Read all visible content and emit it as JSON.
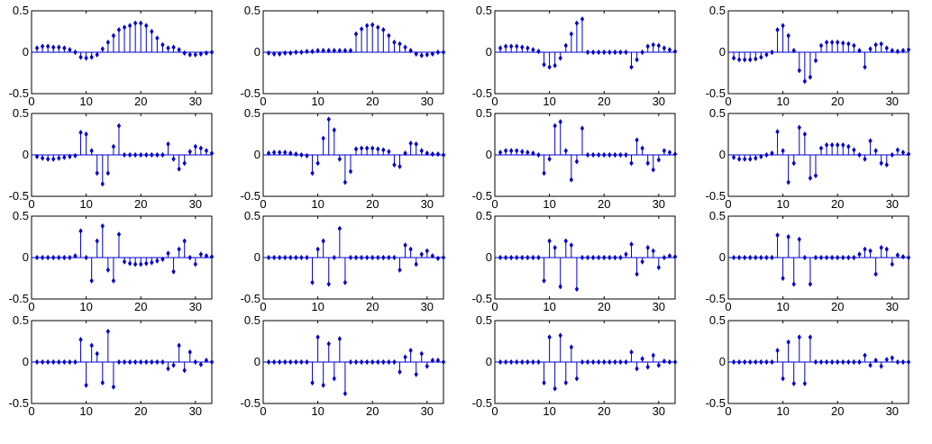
{
  "figure": {
    "background": "#ffffff",
    "marker_color": "#0000cc",
    "axes_color": "#000000",
    "x_tick_labels": [
      "0",
      "10",
      "20",
      "30"
    ],
    "y_tick_labels": [
      "0.5",
      "0",
      "-0.5"
    ]
  },
  "chart_data": [
    {
      "type": "stem",
      "row": 1,
      "col": 1,
      "xlim": [
        0,
        33
      ],
      "ylim": [
        -0.5,
        0.5
      ],
      "x": [
        1,
        2,
        3,
        4,
        5,
        6,
        7,
        8,
        9,
        10,
        11,
        12,
        13,
        14,
        15,
        16,
        17,
        18,
        19,
        20,
        21,
        22,
        23,
        24,
        25,
        26,
        27,
        28,
        29,
        30,
        31,
        32,
        33
      ],
      "y": [
        0.05,
        0.07,
        0.07,
        0.06,
        0.06,
        0.05,
        0.03,
        0.0,
        -0.06,
        -0.07,
        -0.06,
        -0.03,
        0.04,
        0.12,
        0.2,
        0.27,
        0.3,
        0.32,
        0.35,
        0.35,
        0.32,
        0.25,
        0.17,
        0.09,
        0.05,
        0.06,
        0.03,
        -0.01,
        -0.03,
        -0.03,
        -0.02,
        -0.01,
        0.0
      ]
    },
    {
      "type": "stem",
      "row": 1,
      "col": 2,
      "xlim": [
        0,
        33
      ],
      "ylim": [
        -0.5,
        0.5
      ],
      "x": [
        1,
        2,
        3,
        4,
        5,
        6,
        7,
        8,
        9,
        10,
        11,
        12,
        13,
        14,
        15,
        16,
        17,
        18,
        19,
        20,
        21,
        22,
        23,
        24,
        25,
        26,
        27,
        28,
        29,
        30,
        31,
        32,
        33
      ],
      "y": [
        -0.01,
        -0.02,
        -0.02,
        -0.01,
        -0.01,
        0.0,
        0.0,
        0.01,
        0.01,
        0.02,
        0.02,
        0.02,
        0.02,
        0.02,
        0.02,
        0.02,
        0.22,
        0.28,
        0.32,
        0.33,
        0.3,
        0.27,
        0.2,
        0.12,
        0.1,
        0.06,
        0.02,
        -0.02,
        -0.04,
        -0.03,
        -0.02,
        0.0,
        0.0
      ]
    },
    {
      "type": "stem",
      "row": 1,
      "col": 3,
      "xlim": [
        0,
        33
      ],
      "ylim": [
        -0.5,
        0.5
      ],
      "x": [
        1,
        2,
        3,
        4,
        5,
        6,
        7,
        8,
        9,
        10,
        11,
        12,
        13,
        14,
        15,
        16,
        17,
        18,
        19,
        20,
        21,
        22,
        23,
        24,
        25,
        26,
        27,
        28,
        29,
        30,
        31,
        32,
        33
      ],
      "y": [
        0.05,
        0.07,
        0.07,
        0.07,
        0.06,
        0.05,
        0.03,
        0.01,
        -0.15,
        -0.18,
        -0.16,
        -0.07,
        0.08,
        0.22,
        0.35,
        0.4,
        0.0,
        0.0,
        0.0,
        0.0,
        0.0,
        0.0,
        0.0,
        0.0,
        -0.18,
        -0.09,
        0.0,
        0.07,
        0.09,
        0.08,
        0.05,
        0.03,
        0.01
      ]
    },
    {
      "type": "stem",
      "row": 1,
      "col": 4,
      "xlim": [
        0,
        33
      ],
      "ylim": [
        -0.5,
        0.5
      ],
      "x": [
        1,
        2,
        3,
        4,
        5,
        6,
        7,
        8,
        9,
        10,
        11,
        12,
        13,
        14,
        15,
        16,
        17,
        18,
        19,
        20,
        21,
        22,
        23,
        24,
        25,
        26,
        27,
        28,
        29,
        30,
        31,
        32,
        33
      ],
      "y": [
        -0.07,
        -0.09,
        -0.09,
        -0.09,
        -0.08,
        -0.06,
        -0.03,
        0.0,
        0.27,
        0.32,
        0.2,
        0.02,
        -0.22,
        -0.35,
        -0.3,
        -0.1,
        0.08,
        0.12,
        0.12,
        0.12,
        0.11,
        0.1,
        0.08,
        0.02,
        -0.18,
        0.04,
        0.09,
        0.1,
        0.05,
        0.02,
        0.01,
        0.02,
        0.03
      ]
    },
    {
      "type": "stem",
      "row": 2,
      "col": 1,
      "xlim": [
        0,
        33
      ],
      "ylim": [
        -0.5,
        0.5
      ],
      "x": [
        1,
        2,
        3,
        4,
        5,
        6,
        7,
        8,
        9,
        10,
        11,
        12,
        13,
        14,
        15,
        16,
        17,
        18,
        19,
        20,
        21,
        22,
        23,
        24,
        25,
        26,
        27,
        28,
        29,
        30,
        31,
        32,
        33
      ],
      "y": [
        -0.02,
        -0.04,
        -0.05,
        -0.05,
        -0.04,
        -0.03,
        -0.02,
        -0.01,
        0.27,
        0.25,
        0.05,
        -0.22,
        -0.35,
        -0.22,
        0.1,
        0.35,
        0.0,
        0.0,
        0.0,
        0.0,
        0.0,
        0.0,
        0.0,
        0.0,
        0.13,
        -0.05,
        -0.17,
        -0.1,
        0.04,
        0.1,
        0.08,
        0.05,
        0.02
      ]
    },
    {
      "type": "stem",
      "row": 2,
      "col": 2,
      "xlim": [
        0,
        33
      ],
      "ylim": [
        -0.5,
        0.5
      ],
      "x": [
        1,
        2,
        3,
        4,
        5,
        6,
        7,
        8,
        9,
        10,
        11,
        12,
        13,
        14,
        15,
        16,
        17,
        18,
        19,
        20,
        21,
        22,
        23,
        24,
        25,
        26,
        27,
        28,
        29,
        30,
        31,
        32,
        33
      ],
      "y": [
        0.02,
        0.03,
        0.03,
        0.03,
        0.02,
        0.01,
        0.0,
        -0.01,
        -0.22,
        -0.1,
        0.2,
        0.43,
        0.3,
        -0.05,
        -0.33,
        -0.2,
        0.07,
        0.08,
        0.08,
        0.08,
        0.07,
        0.06,
        0.04,
        -0.12,
        -0.14,
        0.02,
        0.14,
        0.13,
        0.05,
        0.02,
        0.01,
        0.01,
        0.0
      ]
    },
    {
      "type": "stem",
      "row": 2,
      "col": 3,
      "xlim": [
        0,
        33
      ],
      "ylim": [
        -0.5,
        0.5
      ],
      "x": [
        1,
        2,
        3,
        4,
        5,
        6,
        7,
        8,
        9,
        10,
        11,
        12,
        13,
        14,
        15,
        16,
        17,
        18,
        19,
        20,
        21,
        22,
        23,
        24,
        25,
        26,
        27,
        28,
        29,
        30,
        31,
        32,
        33
      ],
      "y": [
        0.03,
        0.05,
        0.05,
        0.05,
        0.04,
        0.03,
        0.02,
        0.0,
        -0.22,
        -0.05,
        0.35,
        0.4,
        0.05,
        -0.3,
        -0.08,
        0.32,
        0.0,
        0.0,
        0.0,
        0.0,
        0.0,
        0.0,
        0.0,
        0.0,
        -0.1,
        0.18,
        0.08,
        -0.1,
        -0.18,
        -0.06,
        0.05,
        0.03,
        0.01
      ]
    },
    {
      "type": "stem",
      "row": 2,
      "col": 4,
      "xlim": [
        0,
        33
      ],
      "ylim": [
        -0.5,
        0.5
      ],
      "x": [
        1,
        2,
        3,
        4,
        5,
        6,
        7,
        8,
        9,
        10,
        11,
        12,
        13,
        14,
        15,
        16,
        17,
        18,
        19,
        20,
        21,
        22,
        23,
        24,
        25,
        26,
        27,
        28,
        29,
        30,
        31,
        32,
        33
      ],
      "y": [
        -0.03,
        -0.05,
        -0.05,
        -0.05,
        -0.04,
        -0.02,
        0.0,
        0.02,
        0.28,
        0.05,
        -0.33,
        -0.1,
        0.33,
        0.25,
        -0.28,
        -0.25,
        0.08,
        0.12,
        0.12,
        0.12,
        0.12,
        0.1,
        0.06,
        0.0,
        -0.05,
        0.17,
        0.05,
        -0.1,
        -0.12,
        0.0,
        0.06,
        0.03,
        0.01
      ]
    },
    {
      "type": "stem",
      "row": 3,
      "col": 1,
      "xlim": [
        0,
        33
      ],
      "ylim": [
        -0.5,
        0.5
      ],
      "x": [
        1,
        2,
        3,
        4,
        5,
        6,
        7,
        8,
        9,
        10,
        11,
        12,
        13,
        14,
        15,
        16,
        17,
        18,
        19,
        20,
        21,
        22,
        23,
        24,
        25,
        26,
        27,
        28,
        29,
        30,
        31,
        32,
        33
      ],
      "y": [
        0.0,
        0.0,
        0.0,
        0.0,
        0.0,
        0.0,
        0.0,
        0.02,
        0.32,
        0.0,
        -0.28,
        0.2,
        0.38,
        -0.15,
        -0.28,
        0.28,
        -0.05,
        -0.07,
        -0.08,
        -0.08,
        -0.07,
        -0.06,
        -0.04,
        -0.02,
        0.05,
        -0.17,
        0.1,
        0.2,
        0.0,
        -0.08,
        0.04,
        0.02,
        0.01
      ]
    },
    {
      "type": "stem",
      "row": 3,
      "col": 2,
      "xlim": [
        0,
        33
      ],
      "ylim": [
        -0.5,
        0.5
      ],
      "x": [
        1,
        2,
        3,
        4,
        5,
        6,
        7,
        8,
        9,
        10,
        11,
        12,
        13,
        14,
        15,
        16,
        17,
        18,
        19,
        20,
        21,
        22,
        23,
        24,
        25,
        26,
        27,
        28,
        29,
        30,
        31,
        32,
        33
      ],
      "y": [
        0.0,
        0.0,
        0.0,
        0.0,
        0.0,
        0.0,
        0.0,
        0.0,
        -0.3,
        0.1,
        0.2,
        -0.32,
        0.0,
        0.35,
        -0.3,
        0.0,
        0.0,
        0.0,
        0.0,
        0.0,
        0.0,
        0.0,
        0.0,
        0.0,
        -0.15,
        0.15,
        0.1,
        -0.08,
        0.04,
        0.08,
        0.02,
        -0.01,
        0.0
      ]
    },
    {
      "type": "stem",
      "row": 3,
      "col": 3,
      "xlim": [
        0,
        33
      ],
      "ylim": [
        -0.5,
        0.5
      ],
      "x": [
        1,
        2,
        3,
        4,
        5,
        6,
        7,
        8,
        9,
        10,
        11,
        12,
        13,
        14,
        15,
        16,
        17,
        18,
        19,
        20,
        21,
        22,
        23,
        24,
        25,
        26,
        27,
        28,
        29,
        30,
        31,
        32,
        33
      ],
      "y": [
        0.0,
        0.0,
        0.0,
        0.0,
        0.0,
        0.0,
        0.0,
        0.0,
        -0.28,
        0.2,
        0.12,
        -0.35,
        0.2,
        0.15,
        -0.38,
        0.0,
        0.0,
        0.0,
        0.0,
        0.0,
        0.0,
        0.0,
        0.0,
        0.04,
        0.16,
        -0.2,
        -0.05,
        0.12,
        0.08,
        -0.12,
        0.0,
        0.02,
        0.01
      ]
    },
    {
      "type": "stem",
      "row": 3,
      "col": 4,
      "xlim": [
        0,
        33
      ],
      "ylim": [
        -0.5,
        0.5
      ],
      "x": [
        1,
        2,
        3,
        4,
        5,
        6,
        7,
        8,
        9,
        10,
        11,
        12,
        13,
        14,
        15,
        16,
        17,
        18,
        19,
        20,
        21,
        22,
        23,
        24,
        25,
        26,
        27,
        28,
        29,
        30,
        31,
        32,
        33
      ],
      "y": [
        0.0,
        0.0,
        0.0,
        0.0,
        0.0,
        0.0,
        0.0,
        0.0,
        0.27,
        -0.25,
        0.25,
        -0.32,
        0.22,
        0.0,
        -0.32,
        0.0,
        0.0,
        0.0,
        0.0,
        0.0,
        0.0,
        0.0,
        0.0,
        0.04,
        0.1,
        0.08,
        -0.2,
        0.12,
        0.1,
        -0.08,
        0.03,
        0.01,
        0.0
      ]
    },
    {
      "type": "stem",
      "row": 4,
      "col": 1,
      "xlim": [
        0,
        33
      ],
      "ylim": [
        -0.5,
        0.5
      ],
      "x": [
        1,
        2,
        3,
        4,
        5,
        6,
        7,
        8,
        9,
        10,
        11,
        12,
        13,
        14,
        15,
        16,
        17,
        18,
        19,
        20,
        21,
        22,
        23,
        24,
        25,
        26,
        27,
        28,
        29,
        30,
        31,
        32,
        33
      ],
      "y": [
        0.0,
        0.0,
        0.0,
        0.0,
        0.0,
        0.0,
        0.0,
        0.0,
        0.27,
        -0.28,
        0.2,
        0.1,
        -0.25,
        0.37,
        -0.3,
        0.0,
        0.0,
        0.0,
        0.0,
        0.0,
        0.0,
        0.0,
        0.0,
        0.0,
        -0.08,
        -0.04,
        0.2,
        -0.1,
        0.12,
        0.0,
        -0.03,
        0.02,
        0.0
      ]
    },
    {
      "type": "stem",
      "row": 4,
      "col": 2,
      "xlim": [
        0,
        33
      ],
      "ylim": [
        -0.5,
        0.5
      ],
      "x": [
        1,
        2,
        3,
        4,
        5,
        6,
        7,
        8,
        9,
        10,
        11,
        12,
        13,
        14,
        15,
        16,
        17,
        18,
        19,
        20,
        21,
        22,
        23,
        24,
        25,
        26,
        27,
        28,
        29,
        30,
        31,
        32,
        33
      ],
      "y": [
        0.0,
        0.0,
        0.0,
        0.0,
        0.0,
        0.0,
        0.0,
        0.0,
        -0.25,
        0.3,
        -0.28,
        0.22,
        -0.2,
        0.28,
        -0.38,
        0.0,
        0.0,
        0.0,
        0.0,
        0.0,
        0.0,
        0.0,
        0.0,
        0.0,
        -0.12,
        0.06,
        0.14,
        -0.15,
        0.1,
        -0.05,
        0.02,
        0.02,
        0.0
      ]
    },
    {
      "type": "stem",
      "row": 4,
      "col": 3,
      "xlim": [
        0,
        33
      ],
      "ylim": [
        -0.5,
        0.5
      ],
      "x": [
        1,
        2,
        3,
        4,
        5,
        6,
        7,
        8,
        9,
        10,
        11,
        12,
        13,
        14,
        15,
        16,
        17,
        18,
        19,
        20,
        21,
        22,
        23,
        24,
        25,
        26,
        27,
        28,
        29,
        30,
        31,
        32,
        33
      ],
      "y": [
        0.0,
        0.0,
        0.0,
        0.0,
        0.0,
        0.0,
        0.0,
        0.0,
        -0.25,
        0.3,
        -0.32,
        0.32,
        -0.25,
        0.18,
        -0.2,
        0.0,
        0.0,
        0.0,
        0.0,
        0.0,
        0.0,
        0.0,
        0.0,
        0.0,
        0.12,
        -0.08,
        0.04,
        -0.06,
        0.08,
        -0.04,
        0.01,
        0.0,
        0.0
      ]
    },
    {
      "type": "stem",
      "row": 4,
      "col": 4,
      "xlim": [
        0,
        33
      ],
      "ylim": [
        -0.5,
        0.5
      ],
      "x": [
        1,
        2,
        3,
        4,
        5,
        6,
        7,
        8,
        9,
        10,
        11,
        12,
        13,
        14,
        15,
        16,
        17,
        18,
        19,
        20,
        21,
        22,
        23,
        24,
        25,
        26,
        27,
        28,
        29,
        30,
        31,
        32,
        33
      ],
      "y": [
        0.0,
        0.0,
        0.0,
        0.0,
        0.0,
        0.0,
        0.0,
        0.0,
        0.14,
        -0.2,
        0.24,
        -0.26,
        0.3,
        -0.26,
        0.3,
        0.0,
        0.0,
        0.0,
        0.0,
        0.0,
        0.0,
        0.0,
        0.0,
        0.0,
        0.08,
        -0.04,
        0.02,
        -0.05,
        0.03,
        0.05,
        0.0,
        0.0,
        0.0
      ]
    }
  ]
}
